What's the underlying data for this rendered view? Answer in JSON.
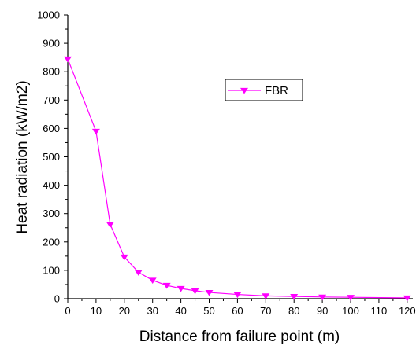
{
  "chart_data": {
    "type": "line",
    "title": "",
    "xlabel": "Distance from failure point (m)",
    "ylabel": "Heat radiation (kW/m2)",
    "xlim": [
      0,
      122
    ],
    "ylim": [
      0,
      1000
    ],
    "x_ticks": [
      0,
      10,
      20,
      30,
      40,
      50,
      60,
      70,
      80,
      90,
      100,
      110,
      120
    ],
    "y_ticks": [
      0,
      100,
      200,
      300,
      400,
      500,
      600,
      700,
      800,
      900,
      1000
    ],
    "grid": false,
    "legend_position": "upper-right-center",
    "series": [
      {
        "name": "FBR",
        "color": "#ff00ff",
        "marker": "triangle-down",
        "x": [
          0,
          10,
          15,
          20,
          25,
          30,
          35,
          40,
          45,
          50,
          60,
          70,
          80,
          90,
          100,
          120
        ],
        "y": [
          845,
          590,
          262,
          147,
          93,
          65,
          47,
          36,
          28,
          22,
          15,
          10,
          8,
          6,
          5,
          3
        ]
      }
    ]
  }
}
